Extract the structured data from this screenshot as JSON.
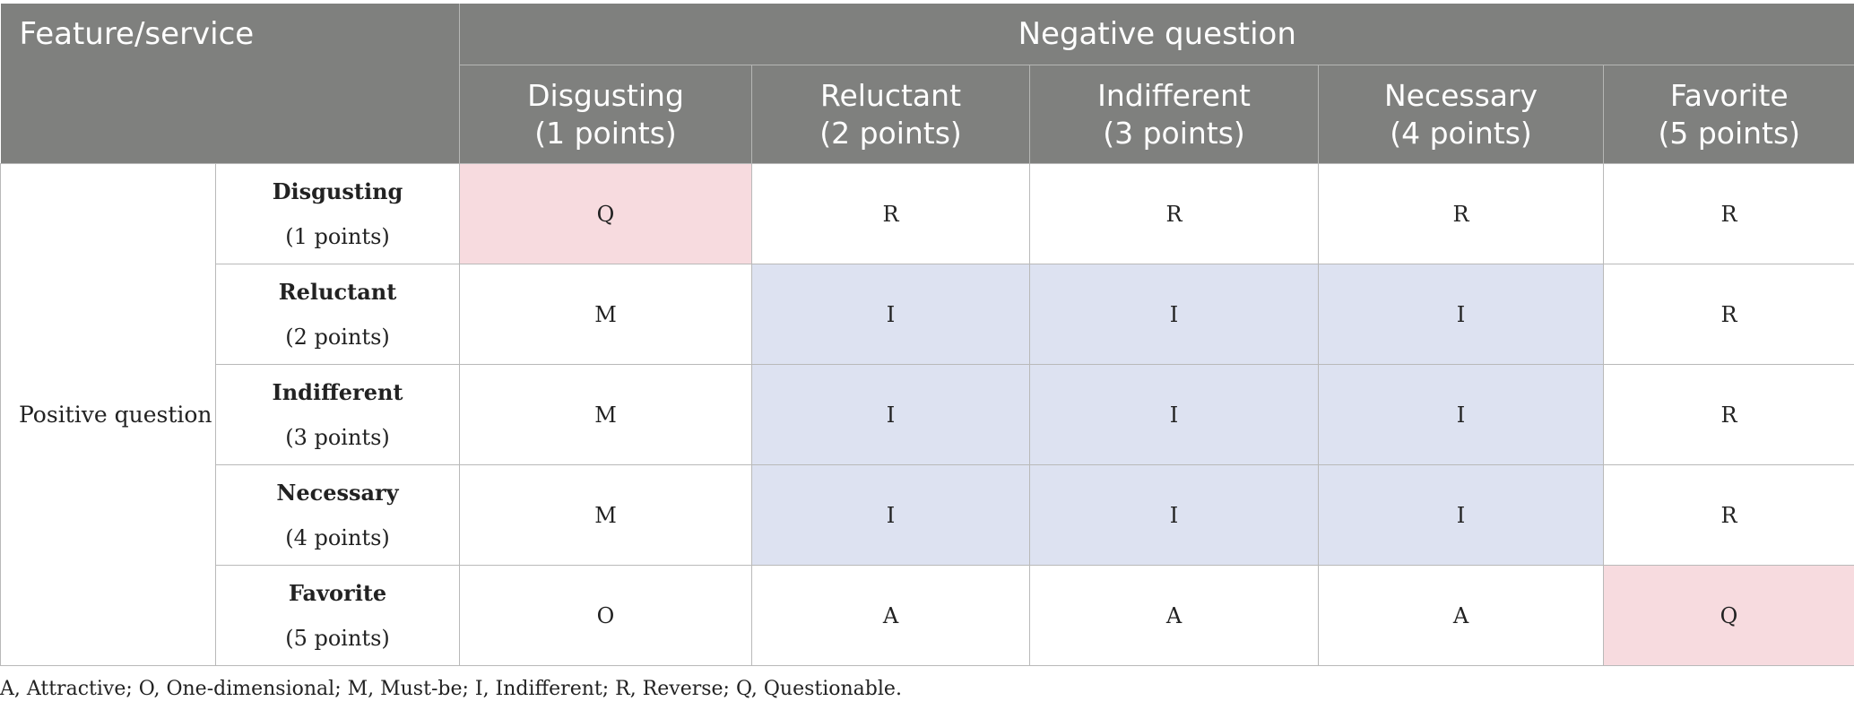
{
  "header": {
    "feature_service": "Feature/service",
    "negative_question": "Negative question",
    "columns": [
      {
        "name": "Disgusting",
        "points": "(1 points)"
      },
      {
        "name": "Reluctant",
        "points": "(2 points)"
      },
      {
        "name": "Indifferent",
        "points": "(3 points)"
      },
      {
        "name": "Necessary",
        "points": "(4 points)"
      },
      {
        "name": "Favorite",
        "points": "(5 points)"
      }
    ]
  },
  "positive_question": "Positive question",
  "rows": [
    {
      "name": "Disgusting",
      "points": "(1 points)",
      "cells": [
        "Q",
        "R",
        "R",
        "R",
        "R"
      ]
    },
    {
      "name": "Reluctant",
      "points": "(2 points)",
      "cells": [
        "M",
        "I",
        "I",
        "I",
        "R"
      ]
    },
    {
      "name": "Indifferent",
      "points": "(3 points)",
      "cells": [
        "M",
        "I",
        "I",
        "I",
        "R"
      ]
    },
    {
      "name": "Necessary",
      "points": "(4 points)",
      "cells": [
        "M",
        "I",
        "I",
        "I",
        "R"
      ]
    },
    {
      "name": "Favorite",
      "points": "(5 points)",
      "cells": [
        "O",
        "A",
        "A",
        "A",
        "Q"
      ]
    }
  ],
  "footnote": "A, Attractive; O, One-dimensional; M, Must-be; I, Indifferent; R, Reverse; Q, Questionable.",
  "colors": {
    "header_bg": "#7f807e",
    "questionable_bg": "#f7dbdf",
    "indifferent_bg": "#dde2f1"
  }
}
